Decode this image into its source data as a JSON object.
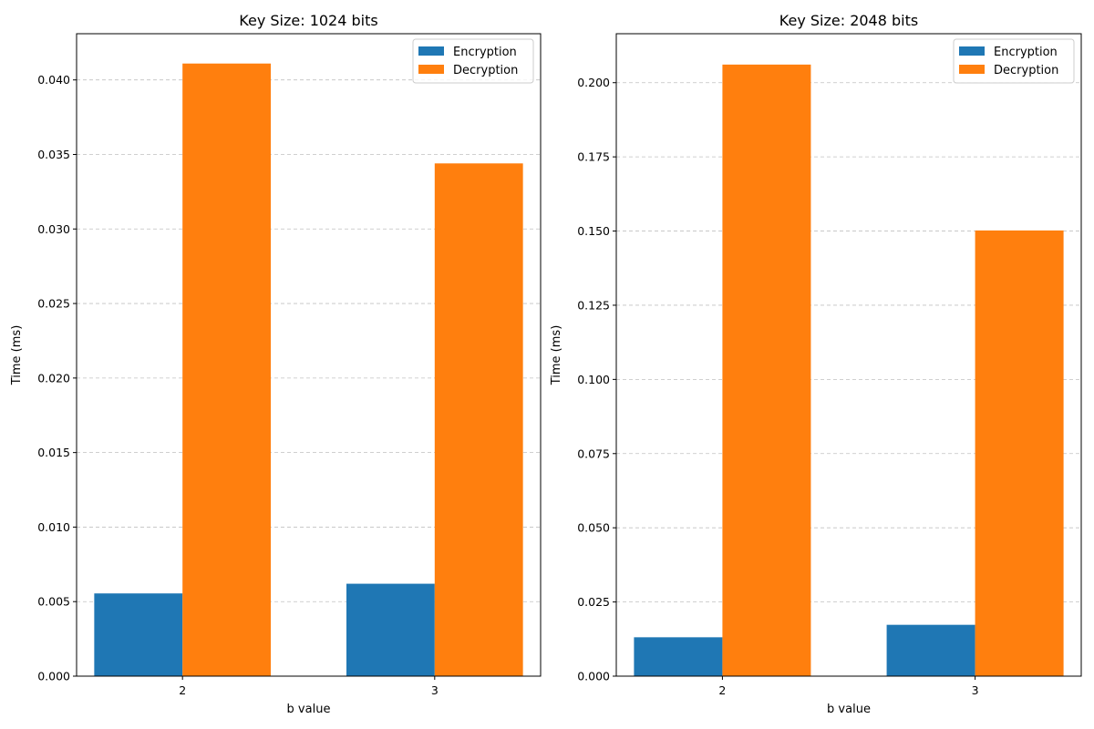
{
  "colors": {
    "encryption": "#1f77b4",
    "decryption": "#ff7f0e",
    "grid": "#b0b0b0"
  },
  "chart_data": [
    {
      "type": "bar",
      "title": "Key Size: 1024 bits",
      "xlabel": "b value",
      "ylabel": "Time (ms)",
      "categories": [
        "2",
        "3"
      ],
      "series": [
        {
          "name": "Encryption",
          "values": [
            0.00555,
            0.0062
          ]
        },
        {
          "name": "Decryption",
          "values": [
            0.0411,
            0.0344
          ]
        }
      ],
      "ylim": [
        0,
        0.0431
      ],
      "yticks": [
        0,
        0.005,
        0.01,
        0.015,
        0.02,
        0.025,
        0.03,
        0.035,
        0.04
      ],
      "ytick_labels": [
        "0.000",
        "0.005",
        "0.010",
        "0.015",
        "0.020",
        "0.025",
        "0.030",
        "0.035",
        "0.040"
      ],
      "grid": "y-dashed",
      "legend": "upper-right"
    },
    {
      "type": "bar",
      "title": "Key Size: 2048 bits",
      "xlabel": "b value",
      "ylabel": "Time (ms)",
      "categories": [
        "2",
        "3"
      ],
      "series": [
        {
          "name": "Encryption",
          "values": [
            0.0131,
            0.0173
          ]
        },
        {
          "name": "Decryption",
          "values": [
            0.2061,
            0.1502
          ]
        }
      ],
      "ylim": [
        0,
        0.2165
      ],
      "yticks": [
        0,
        0.025,
        0.05,
        0.075,
        0.1,
        0.125,
        0.15,
        0.175,
        0.2
      ],
      "ytick_labels": [
        "0.000",
        "0.025",
        "0.050",
        "0.075",
        "0.100",
        "0.125",
        "0.150",
        "0.175",
        "0.200"
      ],
      "grid": "y-dashed",
      "legend": "upper-right"
    }
  ]
}
